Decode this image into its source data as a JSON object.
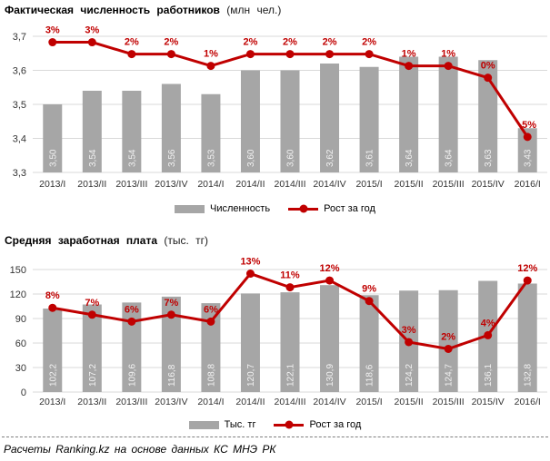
{
  "colors": {
    "bar": "#a6a6a6",
    "line": "#c00000",
    "grid": "#d9d9d9",
    "bar_label": "#f2f2f2",
    "axis_text": "#333333",
    "separator": "#7f7f7f"
  },
  "footer": {
    "text": "Расчеты Ranking.kz на основе данных КС МНЭ РК"
  },
  "chart_data": [
    {
      "type": "bar",
      "combo": "bar+line",
      "title": "Фактическая численность работников",
      "title_unit": "(млн чел.)",
      "categories": [
        "2013/I",
        "2013/II",
        "2013/III",
        "2013/IV",
        "2014/I",
        "2014/II",
        "2014/III",
        "2014/IV",
        "2015/I",
        "2015/II",
        "2015/III",
        "2015/IV",
        "2016/I"
      ],
      "series": [
        {
          "name": "Численность",
          "type": "bar",
          "values": [
            3.5,
            3.54,
            3.54,
            3.56,
            3.53,
            3.6,
            3.6,
            3.62,
            3.61,
            3.64,
            3.64,
            3.63,
            3.43
          ],
          "labels": [
            "3,50",
            "3,54",
            "3,54",
            "3,56",
            "3,53",
            "3,60",
            "3,60",
            "3,62",
            "3,61",
            "3,64",
            "3,64",
            "3,63",
            "3,43"
          ]
        },
        {
          "name": "Рост за год",
          "type": "line",
          "values": [
            3,
            3,
            2,
            2,
            1,
            2,
            2,
            2,
            2,
            1,
            1,
            0,
            -5
          ],
          "labels": [
            "3%",
            "3%",
            "2%",
            "2%",
            "1%",
            "2%",
            "2%",
            "2%",
            "2%",
            "1%",
            "1%",
            "0%",
            "-5%"
          ]
        }
      ],
      "y_axis": {
        "min": 3.3,
        "max": 3.7,
        "ticks": [
          "3,3",
          "3,4",
          "3,5",
          "3,6",
          "3,7"
        ]
      },
      "sec_axis": {
        "min": -8,
        "max": 3.5
      },
      "grid": "on",
      "legend_position": "bottom"
    },
    {
      "type": "bar",
      "combo": "bar+line",
      "title": "Средняя заработная плата",
      "title_unit": "(тыс. тг)",
      "categories": [
        "2013/I",
        "2013/II",
        "2013/III",
        "2013/IV",
        "2014/I",
        "2014/II",
        "2014/III",
        "2014/IV",
        "2015/I",
        "2015/II",
        "2015/III",
        "2015/IV",
        "2016/I"
      ],
      "series": [
        {
          "name": "Тыс. тг",
          "type": "bar",
          "values": [
            102.2,
            107.2,
            109.6,
            116.8,
            108.8,
            120.7,
            122.1,
            130.9,
            118.6,
            124.2,
            124.7,
            136.1,
            132.8
          ],
          "labels": [
            "102,2",
            "107,2",
            "109,6",
            "116,8",
            "108,8",
            "120,7",
            "122,1",
            "130,9",
            "118,6",
            "124,2",
            "124,7",
            "136,1",
            "132,8"
          ]
        },
        {
          "name": "Рост за год",
          "type": "line",
          "values": [
            8,
            7,
            6,
            7,
            6,
            13,
            11,
            12,
            9,
            3,
            2,
            4,
            12
          ],
          "labels": [
            "8%",
            "7%",
            "6%",
            "7%",
            "6%",
            "13%",
            "11%",
            "12%",
            "9%",
            "3%",
            "2%",
            "4%",
            "12%"
          ]
        }
      ],
      "y_axis": {
        "min": 0,
        "max": 150,
        "ticks": [
          "0",
          "30",
          "60",
          "90",
          "120",
          "150"
        ]
      },
      "sec_axis": {
        "min": -4.3,
        "max": 13.6
      },
      "grid": "on",
      "legend_position": "bottom"
    }
  ]
}
